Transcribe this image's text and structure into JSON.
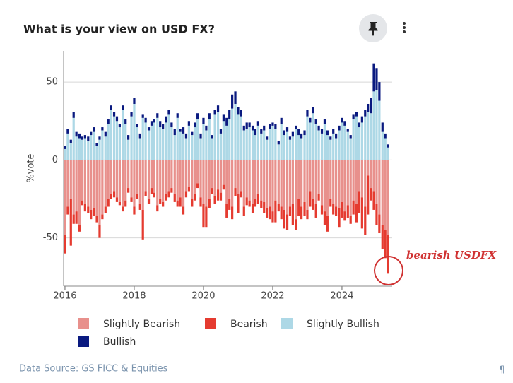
{
  "chart_data": {
    "type": "stacked_bar",
    "title": "What is your view on USD FX?",
    "ylabel": "%vote",
    "annotation": "bearish USDFX",
    "source": "Data Source: GS FICC & Equities",
    "footer_mark": "¶",
    "xlim": [
      2015.96,
      2025.45
    ],
    "xticks": [
      2016,
      2018,
      2020,
      2022,
      2024
    ],
    "ylim": [
      -81,
      70
    ],
    "yticks": [
      -50,
      0,
      50
    ],
    "grid": true,
    "legend": "bottom",
    "x": [
      2016.0,
      2016.08,
      2016.17,
      2016.25,
      2016.33,
      2016.42,
      2016.5,
      2016.58,
      2016.67,
      2016.75,
      2016.83,
      2016.92,
      2017.0,
      2017.08,
      2017.17,
      2017.25,
      2017.33,
      2017.42,
      2017.5,
      2017.58,
      2017.67,
      2017.75,
      2017.83,
      2017.92,
      2018.0,
      2018.08,
      2018.17,
      2018.25,
      2018.33,
      2018.42,
      2018.5,
      2018.58,
      2018.67,
      2018.75,
      2018.83,
      2018.92,
      2019.0,
      2019.08,
      2019.17,
      2019.25,
      2019.33,
      2019.42,
      2019.5,
      2019.58,
      2019.67,
      2019.75,
      2019.83,
      2019.92,
      2020.0,
      2020.08,
      2020.17,
      2020.25,
      2020.33,
      2020.42,
      2020.5,
      2020.58,
      2020.67,
      2020.75,
      2020.83,
      2020.92,
      2021.0,
      2021.08,
      2021.17,
      2021.25,
      2021.33,
      2021.42,
      2021.5,
      2021.58,
      2021.67,
      2021.75,
      2021.83,
      2021.92,
      2022.0,
      2022.08,
      2022.17,
      2022.25,
      2022.33,
      2022.42,
      2022.5,
      2022.58,
      2022.67,
      2022.75,
      2022.83,
      2022.92,
      2023.0,
      2023.08,
      2023.17,
      2023.25,
      2023.33,
      2023.42,
      2023.5,
      2023.58,
      2023.67,
      2023.75,
      2023.83,
      2023.92,
      2024.0,
      2024.08,
      2024.17,
      2024.25,
      2024.33,
      2024.42,
      2024.5,
      2024.58,
      2024.67,
      2024.75,
      2024.83,
      2024.92,
      2025.0,
      2025.08,
      2025.17,
      2025.25,
      2025.33
    ],
    "series": [
      {
        "name": "Slightly Bearish",
        "color": "#e8908c",
        "values": [
          -48,
          -30,
          -25,
          -35,
          -33,
          -42,
          -26,
          -28,
          -30,
          -32,
          -31,
          -36,
          -42,
          -35,
          -30,
          -25,
          -22,
          -20,
          -24,
          -27,
          -30,
          -26,
          -18,
          -24,
          -30,
          -22,
          -28,
          -32,
          -20,
          -25,
          -18,
          -21,
          -29,
          -25,
          -27,
          -22,
          -20,
          -18,
          -22,
          -26,
          -24,
          -30,
          -20,
          -17,
          -25,
          -22,
          -15,
          -24,
          -28,
          -30,
          -25,
          -18,
          -23,
          -19,
          -21,
          -16,
          -28,
          -25,
          -30,
          -18,
          -22,
          -20,
          -30,
          -24,
          -26,
          -28,
          -25,
          -22,
          -26,
          -27,
          -31,
          -30,
          -33,
          -26,
          -28,
          -30,
          -32,
          -35,
          -30,
          -28,
          -38,
          -25,
          -30,
          -27,
          -32,
          -20,
          -25,
          -28,
          -22,
          -29,
          -33,
          -36,
          -25,
          -28,
          -30,
          -31,
          -27,
          -33,
          -29,
          -36,
          -26,
          -28,
          -20,
          -24,
          -30,
          -10,
          -18,
          -20,
          -28,
          -35,
          -42,
          -45,
          -48
        ]
      },
      {
        "name": "Bearish",
        "color": "#e53b30",
        "values": [
          -12,
          -5,
          -30,
          -6,
          -8,
          -4,
          -3,
          -5,
          -4,
          -6,
          -5,
          -4,
          -8,
          -3,
          -4,
          -5,
          -3,
          -4,
          -3,
          -2,
          -3,
          -4,
          -3,
          -3,
          -5,
          -3,
          -4,
          -19,
          -3,
          -3,
          -4,
          -3,
          -4,
          -3,
          -3,
          -4,
          -4,
          -3,
          -5,
          -4,
          -6,
          -5,
          -4,
          -3,
          -5,
          -4,
          -3,
          -6,
          -15,
          -13,
          -6,
          -4,
          -5,
          -7,
          -5,
          -3,
          -9,
          -7,
          -8,
          -5,
          -12,
          -4,
          -6,
          -5,
          -4,
          -6,
          -5,
          -6,
          -5,
          -7,
          -6,
          -8,
          -7,
          -14,
          -5,
          -8,
          -12,
          -10,
          -6,
          -14,
          -7,
          -11,
          -8,
          -9,
          -6,
          -10,
          -7,
          -9,
          -4,
          -6,
          -9,
          -10,
          -5,
          -7,
          -6,
          -12,
          -10,
          -6,
          -8,
          -5,
          -9,
          -12,
          -14,
          -20,
          -18,
          -25,
          -8,
          -12,
          -14,
          -12,
          -15,
          -18,
          -25
        ]
      },
      {
        "name": "Slightly Bullish",
        "color": "#add8e6",
        "values": [
          7,
          17,
          11,
          27,
          15,
          14,
          13,
          14,
          12,
          16,
          18,
          9,
          13,
          19,
          15,
          23,
          32,
          28,
          25,
          21,
          32,
          23,
          13,
          28,
          36,
          21,
          14,
          27,
          24,
          19,
          22,
          24,
          27,
          21,
          20,
          24,
          29,
          21,
          16,
          27,
          18,
          17,
          14,
          22,
          16,
          21,
          26,
          14,
          23,
          19,
          26,
          14,
          29,
          31,
          17,
          25,
          22,
          26,
          33,
          36,
          29,
          28,
          19,
          20,
          21,
          19,
          16,
          22,
          17,
          19,
          13,
          20,
          22,
          20,
          10,
          23,
          16,
          18,
          13,
          15,
          20,
          16,
          14,
          16,
          28,
          24,
          30,
          23,
          19,
          17,
          23,
          16,
          13,
          17,
          14,
          19,
          24,
          22,
          18,
          14,
          26,
          28,
          21,
          24,
          28,
          31,
          30,
          44,
          45,
          38,
          18,
          14,
          8
        ]
      },
      {
        "name": "Bullish",
        "color": "#0a1a80",
        "values": [
          2,
          3,
          2,
          4,
          3,
          3,
          2,
          2,
          3,
          2,
          3,
          2,
          2,
          2,
          3,
          3,
          3,
          3,
          3,
          2,
          3,
          3,
          3,
          3,
          4,
          2,
          3,
          2,
          3,
          2,
          3,
          2,
          3,
          4,
          3,
          4,
          3,
          3,
          4,
          3,
          2,
          4,
          3,
          3,
          2,
          3,
          4,
          3,
          4,
          3,
          4,
          2,
          3,
          4,
          3,
          4,
          5,
          6,
          9,
          8,
          5,
          4,
          3,
          4,
          3,
          3,
          4,
          3,
          3,
          3,
          2,
          3,
          2,
          3,
          2,
          4,
          3,
          3,
          2,
          3,
          2,
          4,
          3,
          3,
          4,
          3,
          4,
          3,
          3,
          3,
          3,
          3,
          2,
          3,
          3,
          3,
          3,
          3,
          2,
          2,
          3,
          3,
          3,
          4,
          4,
          5,
          10,
          18,
          14,
          12,
          6,
          3,
          2
        ]
      }
    ]
  }
}
